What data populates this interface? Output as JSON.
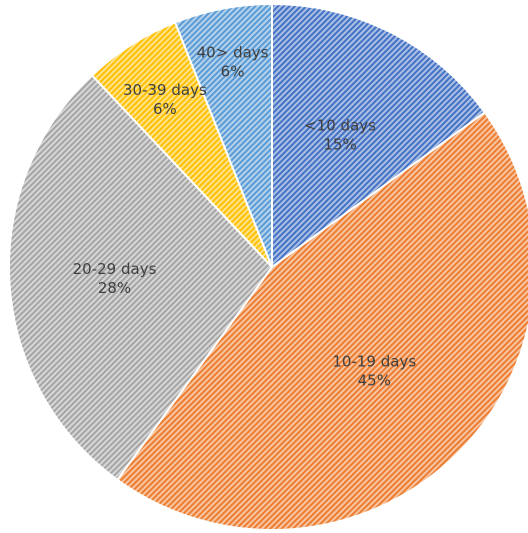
{
  "chart_data": {
    "type": "pie",
    "title": "",
    "series": [
      {
        "categories": [
          "<10 days",
          "10-19 days",
          "20-29 days",
          "30-39 days",
          "40> days"
        ],
        "values": [
          15,
          45,
          28,
          6,
          6
        ],
        "percent_labels": [
          "15%",
          "45%",
          "28%",
          "6%",
          "6%"
        ]
      }
    ],
    "colors": [
      "#4472C4",
      "#ED7D31",
      "#A5A5A5",
      "#FFC000",
      "#5B9BD5"
    ],
    "fill_pattern": "diagonal-hatch",
    "start_angle_deg": 0,
    "direction": "clockwise",
    "legend": "none",
    "data_labels": "category-and-percent"
  }
}
